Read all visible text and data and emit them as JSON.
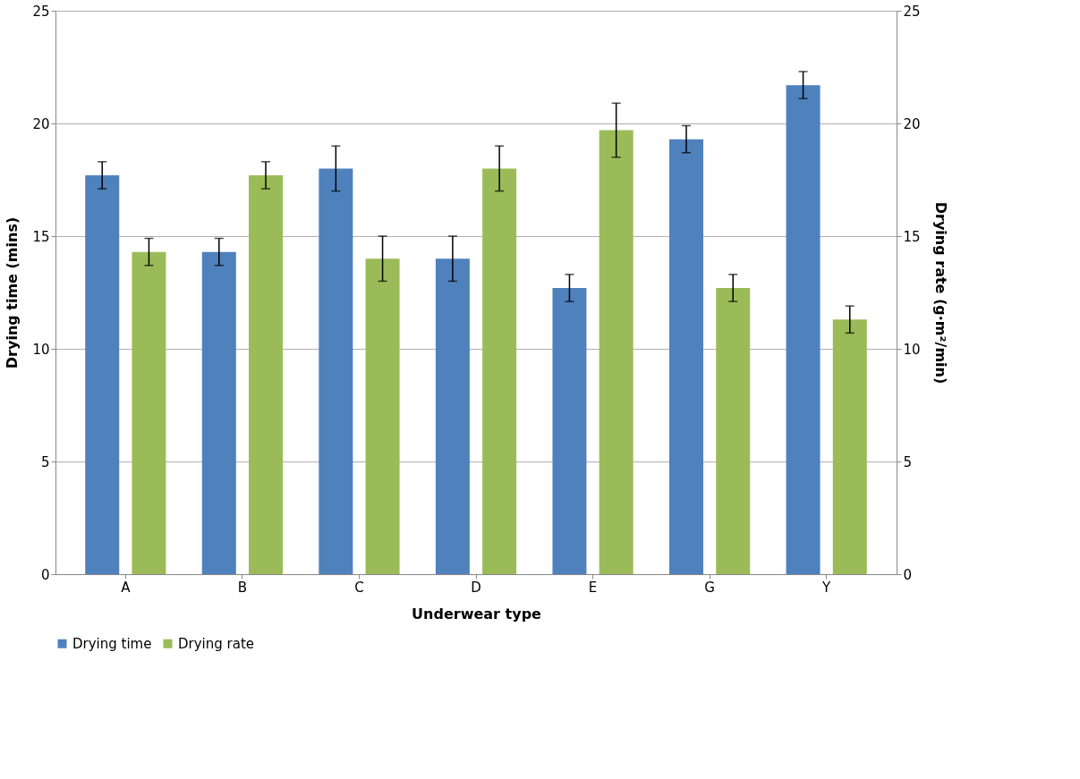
{
  "chart_data": {
    "type": "bar",
    "xlabel": "Underwear type",
    "ylabel": "Drying time (mins)",
    "y2label": "Drying rate (g·m²/min)",
    "categories": [
      "A",
      "B",
      "C",
      "D",
      "E",
      "G",
      "Y"
    ],
    "series": [
      {
        "name": "Drying time",
        "color": "#4f81bd",
        "values": [
          17.7,
          14.3,
          18,
          14,
          12.7,
          19.3,
          21.7
        ],
        "errors": [
          0.6,
          0.6,
          1,
          1,
          0.6,
          0.6,
          0.6
        ]
      },
      {
        "name": "Drying rate",
        "color": "#9bbb59",
        "axis": "y2",
        "values": [
          14.3,
          17.7,
          14,
          18,
          19.7,
          12.7,
          11.3
        ],
        "errors": [
          0.6,
          0.6,
          1,
          1,
          1.2,
          0.6,
          0.6
        ]
      }
    ],
    "ylim": [
      0,
      25
    ],
    "yticks": [
      0,
      5,
      10,
      15,
      20,
      25
    ],
    "y2lim": [
      0,
      25
    ],
    "y2ticks": [
      0,
      5,
      10,
      15,
      20,
      25
    ],
    "grid": "y",
    "legend": "bottom"
  }
}
